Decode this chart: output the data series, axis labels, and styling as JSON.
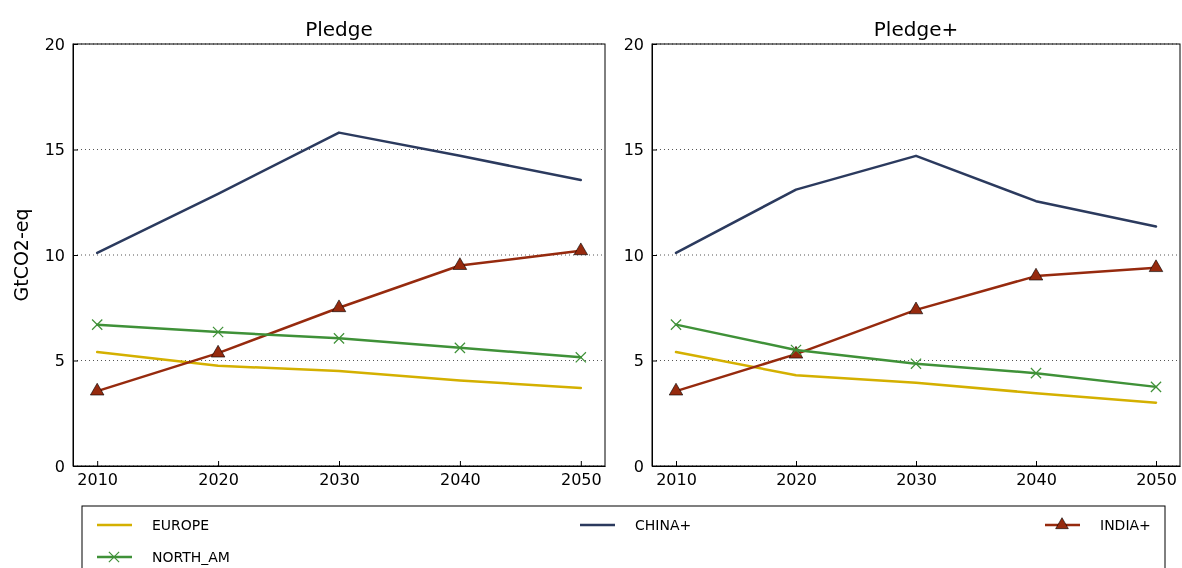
{
  "chart_data": [
    {
      "type": "line",
      "title": "Pledge",
      "ylabel": "GtCO2-eq",
      "x": [
        2010,
        2020,
        2030,
        2040,
        2050
      ],
      "xlim": [
        2008,
        2052
      ],
      "xticks": [
        2010,
        2020,
        2030,
        2040,
        2050
      ],
      "ylim": [
        0,
        20
      ],
      "yticks": [
        0,
        5,
        10,
        15,
        20
      ],
      "grid": "y",
      "legend": "bottom",
      "series": [
        {
          "name": "EUROPE",
          "color": "#d4b000",
          "marker": "none",
          "values": [
            5.4,
            4.75,
            4.5,
            4.05,
            3.7
          ]
        },
        {
          "name": "CHINA+",
          "color": "#2b3a5e",
          "marker": "none",
          "values": [
            10.1,
            12.9,
            15.8,
            14.7,
            13.55
          ]
        },
        {
          "name": "INDIA+",
          "color": "#962a0e",
          "marker": "triangle",
          "values": [
            3.55,
            5.35,
            7.5,
            9.5,
            10.2
          ]
        },
        {
          "name": "NORTH_AM",
          "color": "#3f9138",
          "marker": "cross",
          "values": [
            6.7,
            6.35,
            6.05,
            5.6,
            5.15
          ]
        }
      ]
    },
    {
      "type": "line",
      "title": "Pledge+",
      "x": [
        2010,
        2020,
        2030,
        2040,
        2050
      ],
      "xlim": [
        2008,
        2052
      ],
      "xticks": [
        2010,
        2020,
        2030,
        2040,
        2050
      ],
      "ylim": [
        0,
        20
      ],
      "yticks": [
        0,
        5,
        10,
        15,
        20
      ],
      "grid": "y",
      "series": [
        {
          "color": "#d4b000",
          "marker": "none",
          "values": [
            5.4,
            4.3,
            3.95,
            3.45,
            3.0
          ]
        },
        {
          "color": "#2b3a5e",
          "marker": "none",
          "values": [
            10.1,
            13.1,
            14.7,
            12.55,
            11.35
          ]
        },
        {
          "color": "#962a0e",
          "marker": "triangle",
          "values": [
            3.55,
            5.3,
            7.4,
            9.0,
            9.4
          ]
        },
        {
          "color": "#3f9138",
          "marker": "cross",
          "values": [
            6.7,
            5.5,
            4.85,
            4.4,
            3.75
          ]
        }
      ]
    }
  ]
}
